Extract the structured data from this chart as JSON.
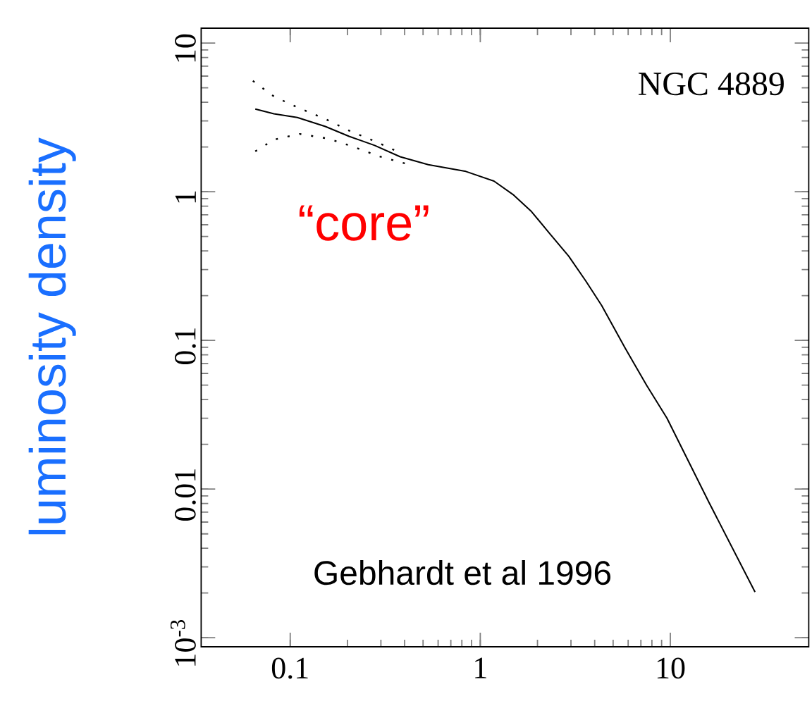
{
  "chart_data": {
    "type": "line",
    "ylabel": "luminosity density",
    "log": "xy",
    "xlim": [
      0.034,
      53.5
    ],
    "ylim": [
      0.00087,
      12.6
    ],
    "xticks": [
      0.1,
      1,
      10
    ],
    "yticks": [
      {
        "value": 0.001,
        "label": "10$^{-3}$"
      },
      0.01,
      0.1,
      1,
      10
    ],
    "marker": "none",
    "line_style": "solid",
    "annotations": [
      "NGC 4889",
      "“core”",
      "Gebhardt et al 1996"
    ],
    "series": [
      {
        "color": "#000000",
        "x": [
          0.0655,
          0.082,
          0.109,
          0.153,
          0.204,
          0.278,
          0.379,
          0.533,
          0.84,
          1.18,
          1.5,
          1.86,
          2.3,
          2.92,
          3.6,
          4.35,
          5.77,
          7.5,
          9.6,
          16,
          27.9
        ],
        "values": [
          3.6,
          3.35,
          3.16,
          2.75,
          2.36,
          2.05,
          1.72,
          1.52,
          1.37,
          1.18,
          0.95,
          0.736,
          0.53,
          0.369,
          0.25,
          0.172,
          0.0893,
          0.05,
          0.03,
          0.0081,
          0.00203
        ]
      },
      {
        "color": "#000000",
        "line_style": "dotted",
        "x": [
          0.0636,
          0.082,
          0.109,
          0.153,
          0.204,
          0.278,
          0.379
        ],
        "values": [
          5.57,
          4.38,
          3.7,
          3.09,
          2.58,
          2.19,
          1.83
        ]
      },
      {
        "color": "#000000",
        "line_style": "dotted",
        "x": [
          0.0655,
          0.082,
          0.112,
          0.158,
          0.215,
          0.294,
          0.402
        ],
        "values": [
          1.87,
          2.24,
          2.45,
          2.28,
          2.01,
          1.73,
          1.55
        ]
      }
    ]
  }
}
